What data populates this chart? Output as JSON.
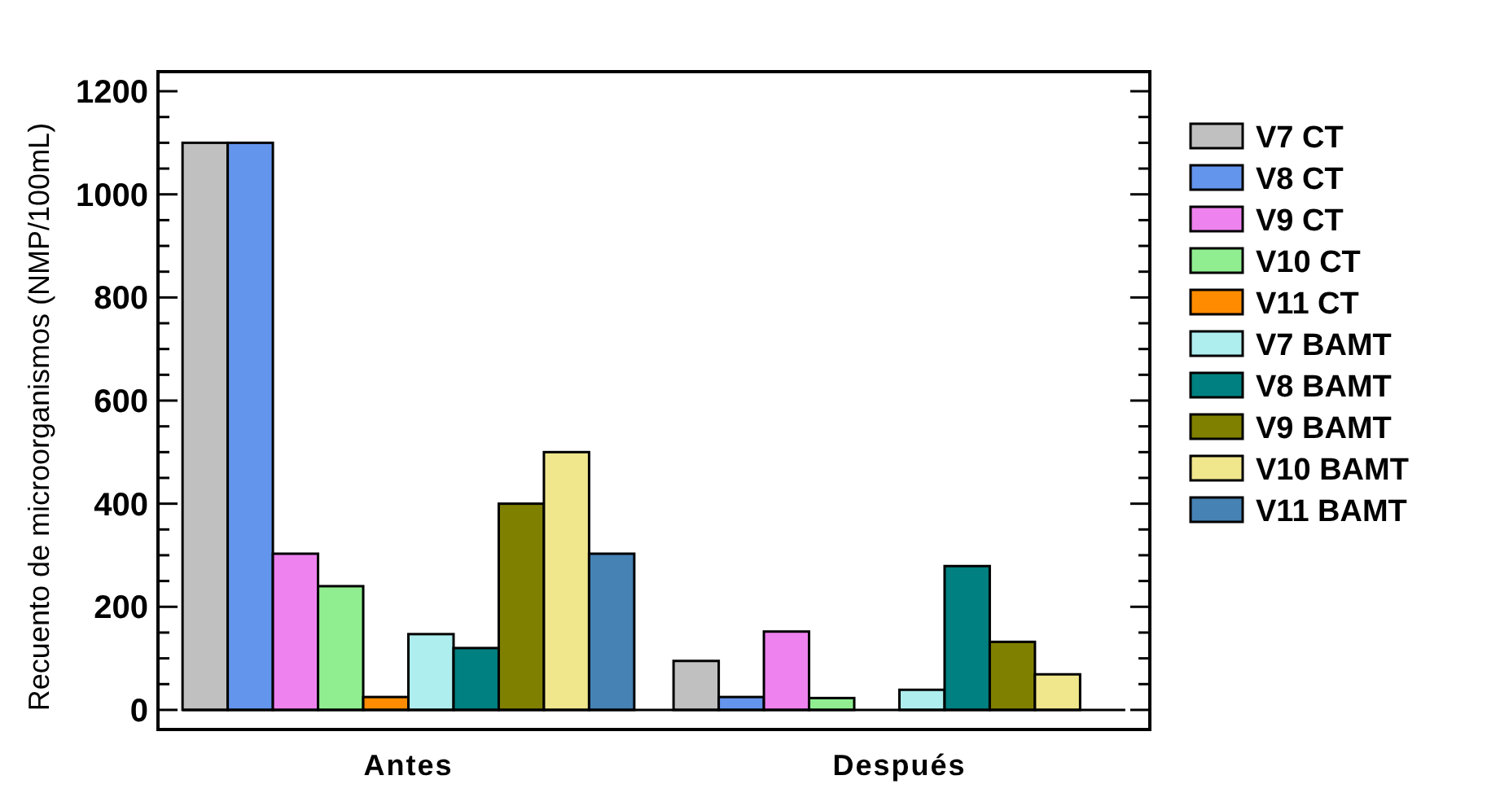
{
  "chart_data": {
    "type": "bar",
    "ylabel": "Recuento de microorganismos (NMP/100mL)",
    "categories": [
      "Antes",
      "Después"
    ],
    "series": [
      {
        "name": "V7 CT",
        "color": "#c0c0c0",
        "values": [
          1100,
          95
        ]
      },
      {
        "name": "V8 CT",
        "color": "#6495ed",
        "values": [
          1100,
          25
        ]
      },
      {
        "name": "V9 CT",
        "color": "#ee82ee",
        "values": [
          303,
          152
        ]
      },
      {
        "name": "V10 CT",
        "color": "#90ee90",
        "values": [
          240,
          23
        ]
      },
      {
        "name": "V11 CT",
        "color": "#ff8c00",
        "values": [
          25,
          0
        ]
      },
      {
        "name": "V7 BAMT",
        "color": "#afeeee",
        "values": [
          147,
          39
        ]
      },
      {
        "name": "V8 BAMT",
        "color": "#008080",
        "values": [
          120,
          279
        ]
      },
      {
        "name": "V9 BAMT",
        "color": "#808000",
        "values": [
          400,
          132
        ]
      },
      {
        "name": "V10 BAMT",
        "color": "#f0e68c",
        "values": [
          500,
          69
        ]
      },
      {
        "name": "V11 BAMT",
        "color": "#4682b4",
        "values": [
          303,
          0
        ]
      }
    ],
    "ylim": [
      -38,
      1238
    ],
    "yticks": [
      0,
      200,
      400,
      600,
      800,
      1000,
      1200
    ],
    "legend": "right"
  }
}
